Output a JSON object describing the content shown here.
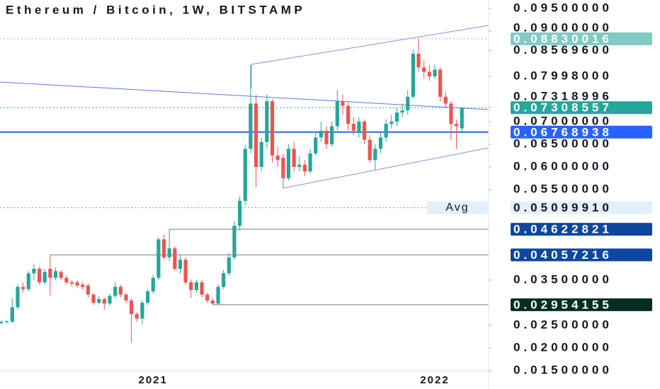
{
  "chart_data": {
    "type": "candlestick",
    "title": "Ethereum / Bitcoin, 1W, BITSTAMP",
    "x": [
      null,
      null,
      null,
      null,
      null,
      null,
      null,
      null,
      null,
      null,
      null,
      null,
      null,
      null,
      null,
      null,
      null,
      null,
      null,
      null,
      null,
      null,
      null,
      null,
      null,
      null,
      null,
      null,
      "2021",
      null,
      null,
      null,
      null,
      null,
      null,
      null,
      null,
      null,
      null,
      null,
      null,
      null,
      null,
      null,
      null,
      null,
      null,
      null,
      null,
      null,
      null,
      null,
      null,
      null,
      null,
      null,
      null,
      null,
      null,
      null,
      null,
      null,
      null,
      null,
      null,
      null,
      null,
      null,
      null,
      null,
      null,
      null,
      null,
      null,
      null,
      null,
      null,
      null,
      null,
      null,
      "2022",
      null,
      null,
      null,
      null,
      null
    ],
    "open": [
      0.0255,
      0.0257,
      0.0258,
      0.029,
      0.0335,
      0.033,
      0.0365,
      0.0375,
      0.0345,
      0.0375,
      0.0355,
      0.0368,
      0.0355,
      0.0345,
      0.0345,
      0.034,
      0.0338,
      0.0318,
      0.03,
      0.0308,
      0.0298,
      0.0315,
      0.0335,
      0.0318,
      0.0305,
      0.0275,
      0.0265,
      0.03,
      0.0325,
      0.0355,
      0.044,
      0.04,
      0.042,
      0.0375,
      0.0395,
      0.0345,
      0.0328,
      0.0345,
      0.0318,
      0.0305,
      0.0298,
      0.0335,
      0.0365,
      0.04,
      0.047,
      0.0525,
      0.064,
      0.074,
      0.06,
      0.0655,
      0.0745,
      0.0625,
      0.062,
      0.0575,
      0.064,
      0.06,
      0.0605,
      0.059,
      0.063,
      0.0665,
      0.068,
      0.065,
      0.069,
      0.0745,
      0.0735,
      0.0695,
      0.0675,
      0.07,
      0.066,
      0.0615,
      0.064,
      0.0665,
      0.0695,
      0.07,
      0.072,
      0.0725,
      0.0755,
      0.085,
      0.082,
      0.081,
      0.08,
      0.0815,
      0.0755,
      0.074,
      0.0695,
      0.0685
    ],
    "high": [
      0.0261,
      0.0262,
      0.031,
      0.034,
      0.0345,
      0.037,
      0.0385,
      0.038,
      0.0375,
      0.04057216,
      0.0378,
      0.0372,
      0.036,
      0.035,
      0.035,
      0.0345,
      0.0342,
      0.0322,
      0.0315,
      0.0312,
      0.032,
      0.0345,
      0.034,
      0.0322,
      0.031,
      0.028,
      0.0305,
      0.033,
      0.0362,
      0.0445,
      0.045,
      0.04622821,
      0.0425,
      0.0405,
      0.04,
      0.0352,
      0.035,
      0.035,
      0.0322,
      0.031,
      0.034,
      0.0372,
      0.041,
      0.048,
      0.0535,
      0.065,
      0.0825,
      0.076,
      0.0665,
      0.076,
      0.075,
      0.0645,
      0.063,
      0.065,
      0.0655,
      0.0625,
      0.0615,
      0.064,
      0.0675,
      0.07,
      0.069,
      0.07,
      0.077,
      0.076,
      0.0745,
      0.071,
      0.071,
      0.0705,
      0.067,
      0.065,
      0.0675,
      0.0705,
      0.0715,
      0.073,
      0.074,
      0.077,
      0.086,
      0.08830016,
      0.0835,
      0.0825,
      0.0825,
      0.082,
      0.0765,
      0.0745,
      0.0705,
      0.0732
    ],
    "low": [
      0.0252,
      0.0254,
      0.0255,
      0.0285,
      0.0322,
      0.0325,
      0.035,
      0.034,
      0.034,
      0.0316,
      0.035,
      0.035,
      0.034,
      0.0336,
      0.0332,
      0.0328,
      0.0312,
      0.0295,
      0.0296,
      0.0285,
      0.0294,
      0.031,
      0.0312,
      0.03,
      0.0212,
      0.0258,
      0.0252,
      0.0295,
      0.032,
      0.035,
      0.0395,
      0.0392,
      0.037,
      0.0365,
      0.034,
      0.031,
      0.0322,
      0.0312,
      0.03,
      0.02954155,
      0.0296,
      0.033,
      0.036,
      0.0395,
      0.046,
      0.0515,
      0.063,
      0.0555,
      0.059,
      0.064,
      0.061,
      0.06,
      0.0553,
      0.057,
      0.059,
      0.059,
      0.058,
      0.0585,
      0.0625,
      0.0655,
      0.064,
      0.0645,
      0.068,
      0.0715,
      0.068,
      0.067,
      0.0665,
      0.065,
      0.061,
      0.0594,
      0.063,
      0.0655,
      0.0685,
      0.069,
      0.071,
      0.0715,
      0.075,
      0.081,
      0.0795,
      0.079,
      0.0795,
      0.0745,
      0.073,
      0.066,
      0.064,
      0.0675
    ],
    "close": [
      0.0258,
      0.0259,
      0.029,
      0.0335,
      0.033,
      0.0365,
      0.0375,
      0.0345,
      0.0368,
      0.0355,
      0.037,
      0.0355,
      0.0345,
      0.0342,
      0.0338,
      0.0335,
      0.0318,
      0.03,
      0.0308,
      0.0298,
      0.0315,
      0.0335,
      0.0318,
      0.0305,
      0.0275,
      0.0265,
      0.03,
      0.0325,
      0.0355,
      0.044,
      0.04,
      0.042,
      0.0375,
      0.0395,
      0.0345,
      0.0328,
      0.0345,
      0.0318,
      0.0305,
      0.0298,
      0.0335,
      0.0365,
      0.04,
      0.047,
      0.0525,
      0.064,
      0.074,
      0.06,
      0.0655,
      0.0745,
      0.0625,
      0.0615,
      0.0575,
      0.064,
      0.06,
      0.0605,
      0.059,
      0.063,
      0.0665,
      0.068,
      0.065,
      0.069,
      0.0745,
      0.0735,
      0.0695,
      0.068,
      0.07,
      0.066,
      0.0615,
      0.064,
      0.0665,
      0.0695,
      0.07,
      0.072,
      0.0725,
      0.0755,
      0.085,
      0.082,
      0.081,
      0.08,
      0.0815,
      0.0755,
      0.074,
      0.0695,
      0.069,
      0.07308557
    ],
    "up_color": "#26a69a",
    "down_color": "#ef5350",
    "ylim": [
      0.015,
      0.095
    ],
    "yticks": [
      {
        "value": 0.095,
        "label": "0.09500000"
      },
      {
        "value": 0.09,
        "label": "0.09000000"
      },
      {
        "value": 0.085696,
        "label": "0.08569600"
      },
      {
        "value": 0.07998,
        "label": "0.07998000"
      },
      {
        "value": 0.07318996,
        "label": "0.07318996"
      },
      {
        "value": 0.07,
        "label": "0.07000000"
      },
      {
        "value": 0.065,
        "label": "0.06500000"
      },
      {
        "value": 0.06,
        "label": "0.06000000"
      },
      {
        "value": 0.055,
        "label": "0.05500000"
      },
      {
        "value": 0.035,
        "label": "0.03500000"
      },
      {
        "value": 0.025,
        "label": "0.02500000"
      },
      {
        "value": 0.02,
        "label": "0.02000000"
      },
      {
        "value": 0.015,
        "label": "0.01500000"
      }
    ],
    "levels": [
      {
        "value": 0.08830016,
        "label": "0.08830016",
        "color": "#80cbc4",
        "text_color": "#ffffff",
        "style": "dotted"
      },
      {
        "value": 0.07308557,
        "label": "0.07308557",
        "color": "#26a69a",
        "text_color": "#ffffff",
        "style": "dotted"
      },
      {
        "value": 0.06768938,
        "label": "0.06768938",
        "color": "#2962ff",
        "text_color": "#ffffff",
        "style": "solid"
      },
      {
        "name": "Avg",
        "value": 0.0509991,
        "label": "0.05099910",
        "color": "#e3effd",
        "text_color": "#131722",
        "style": "dotted"
      },
      {
        "value": 0.04622821,
        "label": "0.04622821",
        "color": "#0d47a1",
        "text_color": "#ffffff",
        "style": "solid"
      },
      {
        "value": 0.04057216,
        "label": "0.04057216",
        "color": "#0d47a1",
        "text_color": "#ffffff",
        "style": "solid"
      },
      {
        "value": 0.02954155,
        "label": "0.02954155",
        "color": "#062c26",
        "text_color": "#ffffff",
        "style": "solid"
      }
    ]
  }
}
